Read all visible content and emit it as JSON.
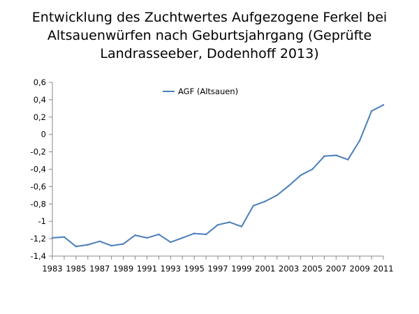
{
  "title_lines": [
    "Entwicklung des Zuchtwertes Aufgezogene Ferkel bei",
    "Altsauenwürfen nach Geburtsjahrgang (Geprüfte",
    "Landrasseeber, Dodenhoff 2013)"
  ],
  "chart_data": {
    "type": "line",
    "title": "Entwicklung des Zuchtwertes Aufgezogene Ferkel bei Altsauenwürfen nach Geburtsjahrgang (Geprüfte Landrasseeber, Dodenhoff 2013)",
    "xlabel": "",
    "ylabel": "",
    "ylim": [
      -1.4,
      0.6
    ],
    "y_ticks": [
      0.6,
      0.4,
      0.2,
      0,
      -0.2,
      -0.4,
      -0.6,
      -0.8,
      -1,
      -1.2,
      -1.4
    ],
    "y_tick_labels": [
      "0,6",
      "0,4",
      "0,2",
      "0",
      "-0,2",
      "-0,4",
      "-0,6",
      "-0,8",
      "-1",
      "-1,2",
      "-1,4"
    ],
    "x_tick_labels": [
      "1983",
      "1985",
      "1987",
      "1989",
      "1991",
      "1993",
      "1995",
      "1997",
      "1999",
      "2001",
      "2003",
      "2005",
      "2007",
      "2009",
      "2011"
    ],
    "grid": false,
    "legend_position": "top-center",
    "x": [
      1983,
      1984,
      1985,
      1986,
      1987,
      1988,
      1989,
      1990,
      1991,
      1992,
      1993,
      1994,
      1995,
      1996,
      1997,
      1998,
      1999,
      2000,
      2001,
      2002,
      2003,
      2004,
      2005,
      2006,
      2007,
      2008,
      2009,
      2010,
      2011
    ],
    "series": [
      {
        "name": "AGF (Altsauen)",
        "color": "#4a7ebb",
        "values": [
          -1.19,
          -1.18,
          -1.29,
          -1.27,
          -1.23,
          -1.28,
          -1.26,
          -1.16,
          -1.19,
          -1.15,
          -1.24,
          -1.19,
          -1.14,
          -1.15,
          -1.04,
          -1.01,
          -1.06,
          -0.82,
          -0.77,
          -0.7,
          -0.59,
          -0.47,
          -0.4,
          -0.25,
          -0.24,
          -0.29,
          -0.07,
          0.27,
          0.34
        ]
      }
    ]
  }
}
